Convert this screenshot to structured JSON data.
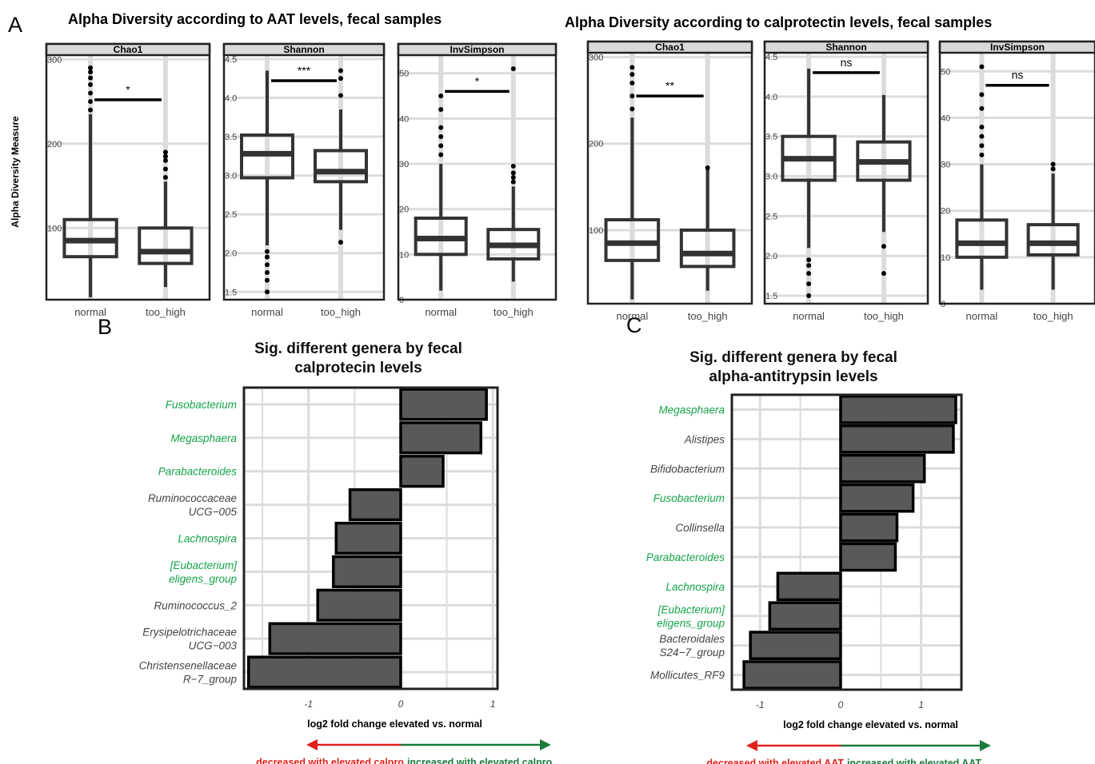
{
  "panel_letters": {
    "a": "A",
    "b": "B",
    "c": "C"
  },
  "colors": {
    "box": "#333333",
    "bar_fill": "#595959",
    "strip": "#d9d9d9",
    "grid": "#dcdcdc",
    "green": "#16a34a",
    "green_dark": "#1a7a3a",
    "red": "#e0201b",
    "gray_text": "#444444"
  },
  "chart_data": [
    {
      "type": "box",
      "title": "Alpha Diversity according to AAT levels, fecal samples",
      "ylabel": "Alpha Diversity Measure",
      "facets": [
        {
          "strip": "Chao1",
          "ylim": [
            15,
            305
          ],
          "yticks": [
            "100",
            "200",
            "300"
          ],
          "ytick_values": [
            100,
            200,
            300
          ],
          "categories": [
            "normal",
            "too_high"
          ],
          "boxes": [
            {
              "q1": 66,
              "median": 85,
              "q3": 110,
              "whislo": 18,
              "whishi": 235,
              "outliers": [
                240,
                250,
                260,
                270,
                278,
                285,
                290
              ]
            },
            {
              "q1": 58,
              "median": 72,
              "q3": 100,
              "whislo": 30,
              "whishi": 155,
              "outliers": [
                160,
                170,
                180,
                185,
                190
              ]
            }
          ],
          "significance": "*",
          "sig_y": 252
        },
        {
          "strip": "Shannon",
          "ylim": [
            1.4,
            4.55
          ],
          "yticks": [
            "1.5",
            "2.0",
            "2.5",
            "3.0",
            "3.5",
            "4.0",
            "4.5"
          ],
          "ytick_values": [
            1.5,
            2.0,
            2.5,
            3.0,
            3.5,
            4.0,
            4.5
          ],
          "categories": [
            "normal",
            "too_high"
          ],
          "boxes": [
            {
              "q1": 2.97,
              "median": 3.28,
              "q3": 3.52,
              "whislo": 2.1,
              "whishi": 4.35,
              "outliers": [
                1.5,
                1.65,
                1.75,
                1.85,
                1.95,
                2.02
              ]
            },
            {
              "q1": 2.92,
              "median": 3.05,
              "q3": 3.32,
              "whislo": 2.3,
              "whishi": 3.85,
              "outliers": [
                2.14,
                4.03,
                4.25,
                4.35
              ]
            }
          ],
          "significance": "***",
          "sig_y": 4.22
        },
        {
          "strip": "InvSimpson",
          "ylim": [
            0,
            54
          ],
          "yticks": [
            "0",
            "10",
            "20",
            "30",
            "40",
            "50"
          ],
          "ytick_values": [
            0,
            10,
            20,
            30,
            40,
            50
          ],
          "categories": [
            "normal",
            "too_high"
          ],
          "boxes": [
            {
              "q1": 10,
              "median": 13.5,
              "q3": 18,
              "whislo": 2,
              "whishi": 30,
              "outliers": [
                32,
                34,
                36,
                38,
                42,
                45
              ]
            },
            {
              "q1": 9,
              "median": 12,
              "q3": 15.5,
              "whislo": 4,
              "whishi": 25,
              "outliers": [
                26,
                27,
                28,
                29.5,
                51
              ]
            }
          ],
          "significance": "*",
          "sig_y": 46
        }
      ]
    },
    {
      "type": "box",
      "title": "Alpha Diversity according to calprotectin levels, fecal samples",
      "facets": [
        {
          "strip": "Chao1",
          "ylim": [
            15,
            305
          ],
          "yticks": [
            "100",
            "200",
            "300"
          ],
          "ytick_values": [
            100,
            200,
            300
          ],
          "categories": [
            "normal",
            "too_high"
          ],
          "boxes": [
            {
              "q1": 65,
              "median": 85,
              "q3": 112,
              "whislo": 20,
              "whishi": 230,
              "outliers": [
                240,
                255,
                270,
                280,
                288
              ]
            },
            {
              "q1": 58,
              "median": 73,
              "q3": 100,
              "whislo": 30,
              "whishi": 170,
              "outliers": [
                172
              ]
            }
          ],
          "significance": "**",
          "sig_y": 255
        },
        {
          "strip": "Shannon",
          "ylim": [
            1.4,
            4.55
          ],
          "yticks": [
            "1.5",
            "2.0",
            "2.5",
            "3.0",
            "3.5",
            "4.0",
            "4.5"
          ],
          "ytick_values": [
            1.5,
            2.0,
            2.5,
            3.0,
            3.5,
            4.0,
            4.5
          ],
          "categories": [
            "normal",
            "too_high"
          ],
          "boxes": [
            {
              "q1": 2.95,
              "median": 3.22,
              "q3": 3.5,
              "whislo": 2.1,
              "whishi": 4.35,
              "outliers": [
                1.5,
                1.65,
                1.78,
                1.88,
                1.95
              ]
            },
            {
              "q1": 2.95,
              "median": 3.18,
              "q3": 3.43,
              "whislo": 2.3,
              "whishi": 4.02,
              "outliers": [
                2.12,
                1.78
              ]
            }
          ],
          "significance": "ns",
          "sig_y": 4.3
        },
        {
          "strip": "InvSimpson",
          "ylim": [
            0,
            54
          ],
          "yticks": [
            "0",
            "10",
            "20",
            "30",
            "40",
            "50"
          ],
          "ytick_values": [
            0,
            10,
            20,
            30,
            40,
            50
          ],
          "categories": [
            "normal",
            "too_high"
          ],
          "boxes": [
            {
              "q1": 10,
              "median": 13,
              "q3": 18,
              "whislo": 3,
              "whishi": 30,
              "outliers": [
                32,
                34,
                36,
                38,
                42,
                45,
                51
              ]
            },
            {
              "q1": 10.5,
              "median": 13,
              "q3": 17,
              "whislo": 3,
              "whishi": 28,
              "outliers": [
                29,
                30
              ]
            }
          ],
          "significance": "ns",
          "sig_y": 47
        }
      ]
    },
    {
      "type": "bar",
      "orientation": "horizontal",
      "title": "Sig. different genera by fecal calprotecin levels",
      "title_lines": [
        "Sig. different genera by fecal",
        "calprotecin levels"
      ],
      "xlabel": "log2 fold change elevated vs. normal",
      "xlim": [
        -1.7,
        1.05
      ],
      "xticks": [
        "-1",
        "0",
        "1"
      ],
      "xtick_values": [
        -1,
        0,
        1
      ],
      "categories": [
        {
          "lines": [
            "Fusobacterium"
          ],
          "green": true
        },
        {
          "lines": [
            "Megasphaera"
          ],
          "green": true
        },
        {
          "lines": [
            "Parabacteroides"
          ],
          "green": true
        },
        {
          "lines": [
            "Ruminococcaceae",
            "UCG−005"
          ],
          "green": false
        },
        {
          "lines": [
            "Lachnospira"
          ],
          "green": true
        },
        {
          "lines": [
            "[Eubacterium]",
            "eligens_group"
          ],
          "green": true
        },
        {
          "lines": [
            "Ruminococcus_2"
          ],
          "green": false
        },
        {
          "lines": [
            "Erysipelotrichaceae",
            "UCG−003"
          ],
          "green": false
        },
        {
          "lines": [
            "Christensenellaceae",
            "R−7_group"
          ],
          "green": false
        }
      ],
      "values": [
        0.93,
        0.87,
        0.46,
        -0.55,
        -0.7,
        -0.73,
        -0.9,
        -1.42,
        -1.65
      ],
      "decrease_label": "decreased with elevated calpro",
      "increase_label": "increased with elevated calpro"
    },
    {
      "type": "bar",
      "orientation": "horizontal",
      "title": "Sig. different genera by fecal alpha-antitrypsin levels",
      "title_lines": [
        "Sig. different genera by fecal",
        "alpha-antitrypsin levels"
      ],
      "xlabel": "log2 fold change elevated vs. normal",
      "xlim": [
        -1.35,
        1.5
      ],
      "xticks": [
        "-1",
        "0",
        "1"
      ],
      "xtick_values": [
        -1,
        0,
        1
      ],
      "categories": [
        {
          "lines": [
            "Megasphaera"
          ],
          "green": true
        },
        {
          "lines": [
            "Alistipes"
          ],
          "green": false
        },
        {
          "lines": [
            "Bifidobacterium"
          ],
          "green": false
        },
        {
          "lines": [
            "Fusobacterium"
          ],
          "green": true
        },
        {
          "lines": [
            "Collinsella"
          ],
          "green": false
        },
        {
          "lines": [
            "Parabacteroides"
          ],
          "green": true
        },
        {
          "lines": [
            "Lachnospira"
          ],
          "green": true
        },
        {
          "lines": [
            "[Eubacterium]",
            "eligens_group"
          ],
          "green": true
        },
        {
          "lines": [
            "Bacteroidales",
            "S24−7_group"
          ],
          "green": false
        },
        {
          "lines": [
            "Mollicutes_RF9"
          ],
          "green": false
        }
      ],
      "values": [
        1.43,
        1.4,
        1.04,
        0.9,
        0.7,
        0.68,
        -0.78,
        -0.88,
        -1.12,
        -1.2
      ],
      "decrease_label": "decreased with elevated AAT",
      "increase_label": "increased with elevated AAT"
    }
  ]
}
